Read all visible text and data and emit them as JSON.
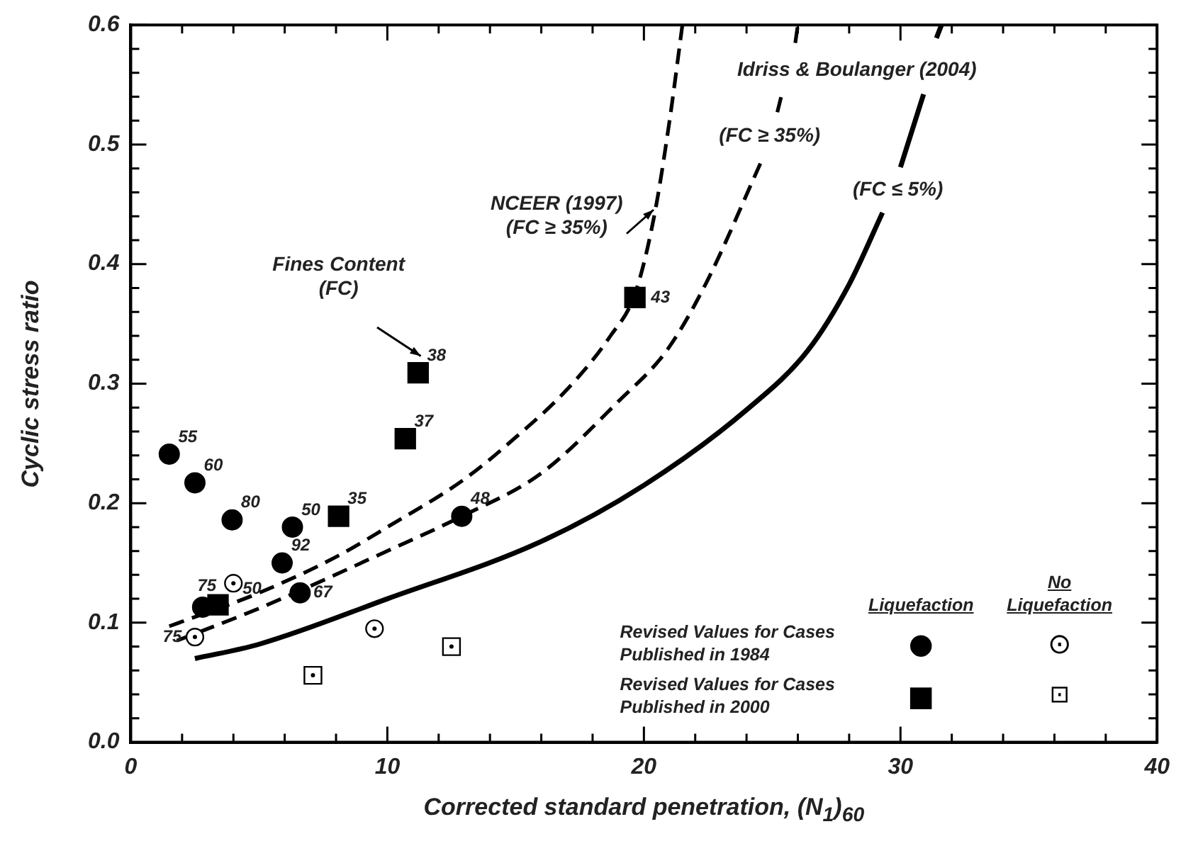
{
  "chart_data": {
    "type": "scatter",
    "xlabel": "Corrected standard penetration, (N$_{1}$)$_{60}$",
    "ylabel": "Cyclic stress ratio",
    "xlim": [
      0,
      40
    ],
    "ylim": [
      0,
      0.6
    ],
    "xticks": [
      0,
      {
        "value": 2,
        "label": null
      },
      {
        "value": 4,
        "label": null
      },
      {
        "value": 6,
        "label": null
      },
      {
        "value": 8,
        "label": null
      },
      10,
      {
        "value": 12,
        "label": null
      },
      {
        "value": 14,
        "label": null
      },
      {
        "value": 16,
        "label": null
      },
      {
        "value": 18,
        "label": null
      },
      20,
      {
        "value": 22,
        "label": null
      },
      {
        "value": 24,
        "label": null
      },
      {
        "value": 26,
        "label": null
      },
      {
        "value": 28,
        "label": null
      },
      30,
      {
        "value": 32,
        "label": null
      },
      {
        "value": 34,
        "label": null
      },
      {
        "value": 36,
        "label": null
      },
      {
        "value": 38,
        "label": null
      },
      40
    ],
    "yticks": [
      {
        "value": 0,
        "label": "0.0"
      },
      {
        "value": 0.02,
        "label": null
      },
      {
        "value": 0.04,
        "label": null
      },
      {
        "value": 0.06,
        "label": null
      },
      {
        "value": 0.08,
        "label": null
      },
      0.1,
      {
        "value": 0.12,
        "label": null
      },
      {
        "value": 0.14,
        "label": null
      },
      {
        "value": 0.16,
        "label": null
      },
      {
        "value": 0.18,
        "label": null
      },
      0.2,
      {
        "value": 0.22,
        "label": null
      },
      {
        "value": 0.24,
        "label": null
      },
      {
        "value": 0.26,
        "label": null
      },
      {
        "value": 0.28,
        "label": null
      },
      0.3,
      {
        "value": 0.32,
        "label": null
      },
      {
        "value": 0.34,
        "label": null
      },
      {
        "value": 0.36,
        "label": null
      },
      {
        "value": 0.38,
        "label": null
      },
      0.4,
      {
        "value": 0.42,
        "label": null
      },
      {
        "value": 0.44,
        "label": null
      },
      {
        "value": 0.46,
        "label": null
      },
      {
        "value": 0.48,
        "label": null
      },
      0.5,
      {
        "value": 0.52,
        "label": null
      },
      {
        "value": 0.54,
        "label": null
      },
      {
        "value": 0.56,
        "label": null
      },
      {
        "value": 0.58,
        "label": null
      },
      0.6
    ],
    "grid": false,
    "series": [
      {
        "type": "line",
        "color": "#000000",
        "line_style": "solid",
        "x": [
          2.5,
          5,
          10,
          16,
          20,
          24,
          26.4,
          28,
          29.3,
          29.6,
          30,
          30.9,
          31.2,
          31.4,
          31.6
        ],
        "values": [
          0.07,
          0.082,
          0.12,
          0.168,
          0.215,
          0.278,
          0.328,
          0.383,
          0.443,
          null,
          0.481,
          0.542,
          null,
          0.589,
          0.6
        ]
      },
      {
        "type": "line",
        "color": "#000000",
        "line_style": "dashed",
        "x": [
          1.8,
          5,
          10,
          13,
          16,
          19,
          20.9,
          22.4,
          24.6,
          24.9,
          25.2,
          25.35,
          25.7,
          25.9,
          26
        ],
        "values": [
          0.085,
          0.112,
          0.16,
          0.19,
          0.225,
          0.285,
          0.328,
          0.383,
          0.487,
          null,
          0.527,
          0.54,
          null,
          0.585,
          0.6
        ]
      },
      {
        "type": "line",
        "color": "#000000",
        "line_style": "dashed",
        "x": [
          1.5,
          5,
          8,
          10,
          13,
          15,
          17,
          18.7,
          19.65,
          20.4,
          21,
          21.5
        ],
        "values": [
          0.097,
          0.125,
          0.155,
          0.18,
          0.22,
          0.255,
          0.295,
          0.34,
          0.375,
          0.44,
          0.52,
          0.6
        ]
      },
      {
        "type": "scatter",
        "marker": "circle",
        "color": "#000000",
        "x": [
          1.5,
          2.5,
          3.95,
          6.3,
          5.9,
          6.6,
          2.8,
          12.9
        ],
        "values": [
          0.241,
          0.217,
          0.186,
          0.18,
          0.15,
          0.125,
          0.113,
          0.189
        ]
      },
      {
        "type": "scatter",
        "marker": "circle",
        "color": "#ffffff",
        "x": [
          2.5,
          4,
          9.5
        ],
        "values": [
          0.088,
          0.133,
          0.095
        ]
      },
      {
        "type": "scatter",
        "marker": "square",
        "color": "#000000",
        "x": [
          3.4,
          8.1,
          10.7,
          11.2,
          19.65
        ],
        "values": [
          0.115,
          0.189,
          0.254,
          0.309,
          0.372
        ]
      },
      {
        "type": "scatter",
        "marker": "square",
        "color": "#ffffff",
        "x": [
          7.1,
          12.5
        ],
        "values": [
          0.056,
          0.08
        ]
      }
    ],
    "annotations": [
      "Liquefaction",
      "No Liquefaction",
      "Revised Values for Cases Published in 1984",
      "Revised Values for Cases Published in 2000",
      "●",
      "⊙",
      "■",
      "⊡",
      "Idriss & Boulanger (2004)",
      "(FC ≥ 35%)",
      "(FC ≤ 5%)",
      "NCEER (1997)\n(FC ≥ 35%)",
      "Fines Content\n(FC)",
      {
        "text": "55",
        "x": 1.5,
        "y": 0.241
      },
      {
        "text": "60",
        "x": 2.5,
        "y": 0.217
      },
      {
        "text": "80",
        "x": 3.95,
        "y": 0.186
      },
      {
        "text": "50",
        "x": 6.3,
        "y": 0.18
      },
      {
        "text": "92",
        "x": 5.9,
        "y": 0.15
      },
      {
        "text": "67",
        "x": 6.6,
        "y": 0.125
      },
      {
        "text": "75",
        "x": 2.8,
        "y": 0.113
      },
      {
        "text": "50",
        "x": 3.4,
        "y": 0.115
      },
      {
        "text": "75",
        "x": 2.5,
        "y": 0.088
      },
      {
        "text": "48",
        "x": 12.9,
        "y": 0.189
      },
      {
        "text": "35",
        "x": 8.1,
        "y": 0.189
      },
      {
        "text": "37",
        "x": 10.7,
        "y": 0.254
      },
      {
        "text": "38",
        "x": 11.2,
        "y": 0.309
      },
      {
        "text": "43",
        "x": 19.65,
        "y": 0.372
      }
    ]
  }
}
